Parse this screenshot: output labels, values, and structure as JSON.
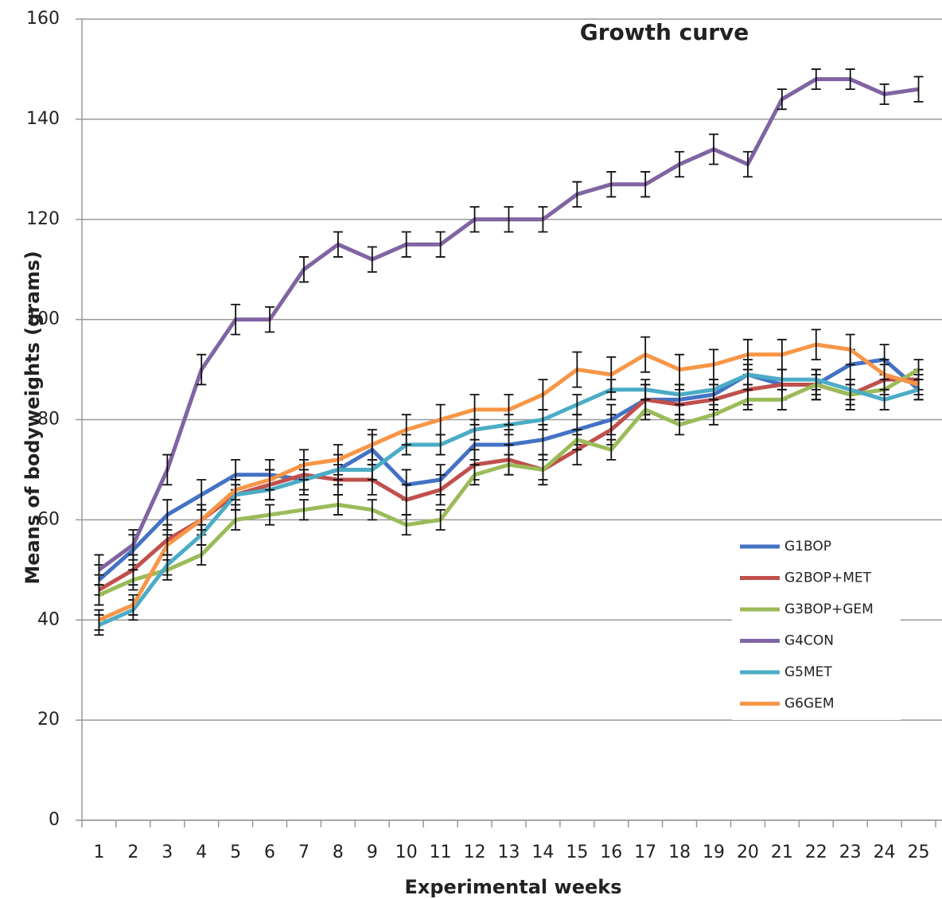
{
  "chart_data": {
    "type": "line",
    "title": "Growth curve",
    "x_label": "Experimental weeks",
    "y_label": "Means of bodyweights (grams)",
    "categories": [
      "1",
      "2",
      "3",
      "4",
      "5",
      "6",
      "7",
      "8",
      "9",
      "10",
      "11",
      "12",
      "13",
      "14",
      "15",
      "16",
      "17",
      "18",
      "19",
      "20",
      "21",
      "22",
      "23",
      "24",
      "25"
    ],
    "ylim": [
      0,
      160
    ],
    "yticks": [
      0,
      20,
      40,
      60,
      80,
      100,
      120,
      140,
      160
    ],
    "grid": true,
    "legend": "right",
    "series": [
      {
        "name": "G1BOP",
        "color": "#4472c4",
        "values": [
          48,
          54,
          61,
          65,
          69,
          69,
          68,
          70,
          74,
          67,
          68,
          75,
          75,
          76,
          78,
          80,
          84,
          84,
          85,
          89,
          87,
          87,
          91,
          92,
          86
        ],
        "errors": [
          3,
          3,
          3,
          3,
          3,
          3,
          3,
          3,
          3,
          3,
          3,
          3,
          3,
          3,
          3,
          3,
          3,
          3,
          3,
          3,
          3,
          3,
          3,
          3,
          2
        ]
      },
      {
        "name": "G2BOP+MET",
        "color": "#c0504d",
        "values": [
          46,
          50,
          56,
          60,
          65,
          67,
          69,
          68,
          68,
          64,
          66,
          71,
          72,
          70,
          74,
          78,
          84,
          83,
          84,
          86,
          87,
          87,
          85,
          88,
          88
        ],
        "errors": [
          3,
          3,
          3,
          3,
          3,
          3,
          3,
          3,
          3,
          3,
          3,
          3,
          3,
          3,
          3,
          3,
          3,
          3,
          3,
          3,
          3,
          3,
          3,
          3,
          2
        ]
      },
      {
        "name": "G3BOP+GEM",
        "color": "#9bbb59",
        "values": [
          45,
          48,
          50,
          53,
          60,
          61,
          62,
          63,
          62,
          59,
          60,
          69,
          71,
          70,
          76,
          74,
          82,
          79,
          81,
          84,
          84,
          87,
          85,
          86,
          90
        ],
        "errors": [
          2,
          2,
          2,
          2,
          2,
          2,
          2,
          2,
          2,
          2,
          2,
          2,
          2,
          2,
          2,
          2,
          2,
          2,
          2,
          2,
          2,
          2,
          2,
          2,
          2
        ]
      },
      {
        "name": "G4CON",
        "color": "#8064a2",
        "values": [
          50,
          55,
          70,
          90,
          100,
          100,
          110,
          115,
          112,
          115,
          115,
          120,
          120,
          120,
          125,
          127,
          127,
          131,
          134,
          131,
          144,
          148,
          148,
          145,
          146
        ],
        "errors": [
          3,
          3,
          3,
          3,
          3,
          2.5,
          2.5,
          2.5,
          2.5,
          2.5,
          2.5,
          2.5,
          2.5,
          2.5,
          2.5,
          2.5,
          2.5,
          2.5,
          3,
          2.5,
          2,
          2,
          2,
          2,
          2.5
        ]
      },
      {
        "name": "G5MET",
        "color": "#4bacc6",
        "values": [
          39,
          42,
          51,
          57,
          65,
          66,
          68,
          70,
          70,
          75,
          75,
          78,
          79,
          80,
          83,
          86,
          86,
          85,
          86,
          89,
          88,
          88,
          86,
          84,
          86
        ],
        "errors": [
          2,
          2,
          2,
          2,
          2,
          2,
          2,
          2,
          2,
          2,
          2,
          2,
          2,
          2,
          2,
          2,
          2,
          2,
          2,
          2,
          2,
          2,
          2,
          2,
          2
        ]
      },
      {
        "name": "G6GEM",
        "color": "#f79646",
        "values": [
          40,
          43,
          55,
          60,
          66,
          68,
          71,
          72,
          75,
          78,
          80,
          82,
          82,
          85,
          90,
          89,
          93,
          90,
          91,
          93,
          93,
          95,
          94,
          89,
          87
        ],
        "errors": [
          2,
          2,
          2,
          2,
          2,
          2,
          3,
          3,
          3,
          3,
          3,
          3,
          3,
          3,
          3.5,
          3.5,
          3.5,
          3,
          3,
          3,
          3,
          3,
          3,
          3,
          2
        ]
      }
    ]
  }
}
